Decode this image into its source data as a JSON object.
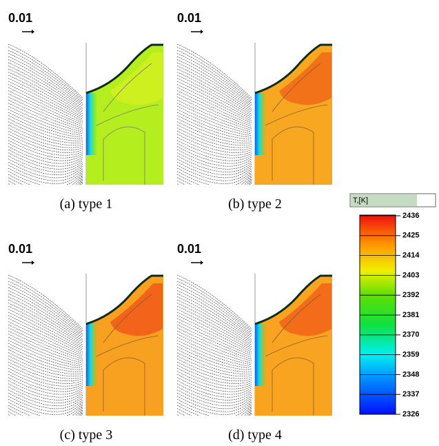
{
  "panels": [
    {
      "scale_label": "0.01",
      "caption": "(a) type 1"
    },
    {
      "scale_label": "0.01",
      "caption": "(b) type 2"
    },
    {
      "scale_label": "0.01",
      "caption": "(c) type 3"
    },
    {
      "scale_label": "0.01",
      "caption": "(d) type 4"
    }
  ],
  "colorbar": {
    "title": "T,[K]",
    "range": [
      2326,
      2436
    ],
    "ticks": [
      2326,
      2337,
      2348,
      2359,
      2370,
      2381,
      2392,
      2403,
      2414,
      2425,
      2436
    ]
  }
}
